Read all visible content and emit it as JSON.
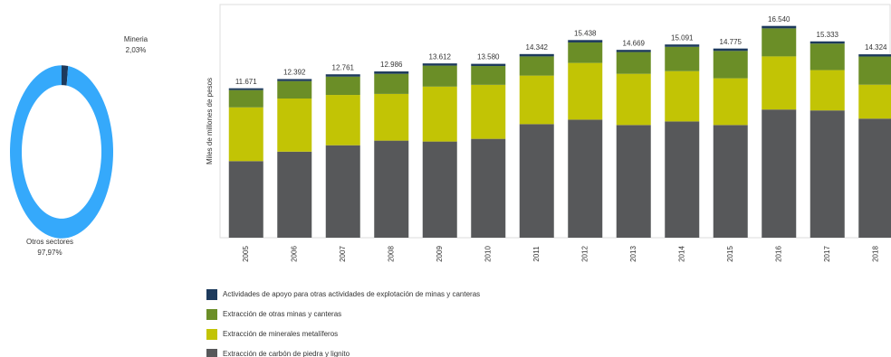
{
  "chart_data": [
    {
      "type": "donut",
      "categories": [
        "Mineria",
        "Otros sectores"
      ],
      "values": [
        2.03,
        97.97
      ],
      "value_labels": [
        "2,03%",
        "97,97%"
      ],
      "colors": [
        "#1d3a5c",
        "#35a9fb"
      ]
    },
    {
      "type": "stacked-bar",
      "y_label": "Miles de millones de pesos",
      "categories": [
        "2005",
        "2006",
        "2007",
        "2008",
        "2009",
        "2010",
        "2011",
        "2012",
        "2013",
        "2014",
        "2015",
        "2016",
        "2017",
        "2018"
      ],
      "series": [
        {
          "name": "Actividades de apoyo para otras actividades de explotación de minas y canteras",
          "color": "#1d3a5c",
          "values": [
            141,
            162,
            181,
            186,
            172,
            170,
            182,
            188,
            169,
            181,
            185,
            190,
            173,
            174
          ]
        },
        {
          "name": "Extracción de otras minas y canteras",
          "color": "#6b8e27",
          "values": [
            1350,
            1360,
            1430,
            1570,
            1640,
            1470,
            1500,
            1600,
            1700,
            1900,
            2140,
            2190,
            2070,
            2200
          ]
        },
        {
          "name": "Extracción de minerales metalíferos",
          "color": "#c2c405",
          "values": [
            4200,
            4150,
            3930,
            3650,
            4290,
            4220,
            3790,
            4430,
            4000,
            3930,
            3650,
            4150,
            3150,
            2650
          ]
        },
        {
          "name": "Extracción de carbón de piedra y lignito",
          "color": "#57585a",
          "values": [
            5980,
            6720,
            7220,
            7580,
            7510,
            7720,
            8870,
            9220,
            8800,
            9080,
            8800,
            10010,
            9940,
            9300
          ]
        }
      ],
      "totals": {
        "values": [
          11671,
          12392,
          12761,
          12986,
          13612,
          13580,
          14342,
          15438,
          14669,
          15091,
          14775,
          16540,
          15333,
          14324
        ],
        "value_labels": [
          "11.671",
          "12.392",
          "12.761",
          "12.986",
          "13.612",
          "13.580",
          "14.342",
          "15.438",
          "14.669",
          "15.091",
          "14.775",
          "16.540",
          "15.333",
          "14.324"
        ]
      },
      "ylim": [
        0,
        18000
      ]
    }
  ]
}
